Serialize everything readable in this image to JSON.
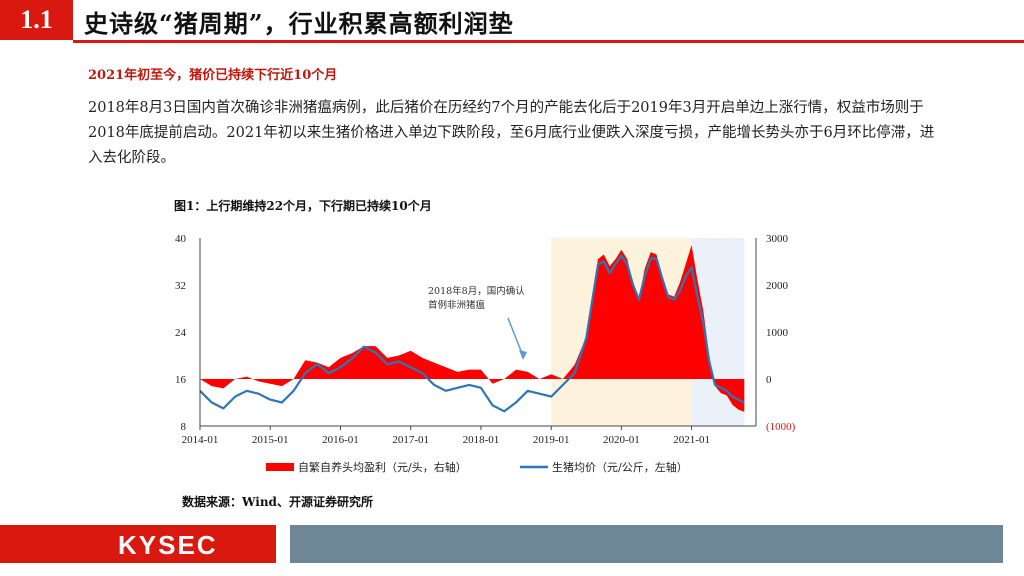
{
  "header": {
    "section_number": "1.1",
    "title": "史诗级“猪周期”，行业积累高额利润垫"
  },
  "subtitle": "2021年初至今，猪价已持续下行近10个月",
  "body_text": "2018年8月3日国内首次确诊非洲猪瘟病例，此后猪价在历经约7个月的产能去化后于2019年3月开启单边上涨行情，权益市场则于2018年底提前启动。2021年初以来生猪价格进入单边下跌阶段，至6月底行业便跌入深度亏损，产能增长势头亦于6月环比停滞，进入去化阶段。",
  "figure_title": "图1：上行期维持22个月，下行期已持续10个月",
  "source": "数据来源：Wind、开源证券研究所",
  "footer": {
    "logo": "KYSEC"
  },
  "colors": {
    "red": "#ff0000",
    "blue": "#2e75b6",
    "brand_red": "#d9190f",
    "footer_gray": "#6e8796",
    "shade_yellow": "#fdf3dd",
    "shade_blue": "#eaf1f9"
  },
  "chart_data": {
    "type": "line+area",
    "x_tick_labels": [
      "2014-01",
      "2015-01",
      "2016-01",
      "2017-01",
      "2018-01",
      "2019-01",
      "2020-01",
      "2021-01"
    ],
    "x_range": [
      "2014-01",
      "2021-12"
    ],
    "left_axis": {
      "ticks": [
        "40",
        "32",
        "24",
        "16",
        "8"
      ],
      "ylim": [
        8,
        40
      ]
    },
    "right_axis": {
      "ticks": [
        "3000",
        "2000",
        "1000",
        "0",
        "(1000)"
      ],
      "ylim": [
        -1000,
        3000
      ]
    },
    "shaded_periods": [
      {
        "from": "2019-01",
        "to": "2021-01",
        "color": "#fdf3dd"
      },
      {
        "from": "2021-01",
        "to": "2021-10",
        "color": "#eaf1f9"
      }
    ],
    "annotation": {
      "lines": [
        "2018年8月，国内确认",
        "首例非洲猪瘟"
      ],
      "points_to": "2018-08"
    },
    "legend": {
      "position": "bottom"
    },
    "series": [
      {
        "name": "自繁自养头均盈利（元/头，右轴）",
        "kind": "area",
        "axis": "right",
        "color": "#ff0000",
        "x": [
          "2014-01",
          "2014-03",
          "2014-05",
          "2014-07",
          "2014-09",
          "2014-11",
          "2015-01",
          "2015-03",
          "2015-05",
          "2015-07",
          "2015-09",
          "2015-11",
          "2016-01",
          "2016-03",
          "2016-05",
          "2016-07",
          "2016-09",
          "2016-11",
          "2017-01",
          "2017-03",
          "2017-05",
          "2017-07",
          "2017-09",
          "2017-11",
          "2018-01",
          "2018-03",
          "2018-05",
          "2018-07",
          "2018-09",
          "2018-11",
          "2019-01",
          "2019-03",
          "2019-05",
          "2019-07",
          "2019-09",
          "2019-10",
          "2019-11",
          "2019-12",
          "2020-01",
          "2020-02",
          "2020-03",
          "2020-04",
          "2020-05",
          "2020-06",
          "2020-07",
          "2020-08",
          "2020-09",
          "2020-10",
          "2020-11",
          "2020-12",
          "2021-01",
          "2021-02",
          "2021-03",
          "2021-04",
          "2021-05",
          "2021-06",
          "2021-07",
          "2021-08",
          "2021-09",
          "2021-10"
        ],
        "values": [
          0,
          -150,
          -200,
          0,
          50,
          -50,
          -100,
          -150,
          0,
          400,
          350,
          250,
          450,
          550,
          700,
          700,
          450,
          500,
          600,
          450,
          350,
          250,
          150,
          200,
          200,
          -100,
          0,
          200,
          150,
          0,
          100,
          0,
          300,
          900,
          2550,
          2650,
          2400,
          2550,
          2750,
          2550,
          2050,
          1700,
          2350,
          2700,
          2650,
          2200,
          1800,
          1750,
          2050,
          2450,
          2850,
          2100,
          1450,
          500,
          -150,
          -300,
          -350,
          -550,
          -650,
          -700
        ]
      },
      {
        "name": "生猪均价（元/公斤，左轴）",
        "kind": "line",
        "axis": "left",
        "color": "#2e75b6",
        "x": [
          "2014-01",
          "2014-03",
          "2014-05",
          "2014-07",
          "2014-09",
          "2014-11",
          "2015-01",
          "2015-03",
          "2015-05",
          "2015-07",
          "2015-09",
          "2015-11",
          "2016-01",
          "2016-03",
          "2016-05",
          "2016-07",
          "2016-09",
          "2016-11",
          "2017-01",
          "2017-03",
          "2017-05",
          "2017-07",
          "2017-09",
          "2017-11",
          "2018-01",
          "2018-03",
          "2018-05",
          "2018-07",
          "2018-09",
          "2018-11",
          "2019-01",
          "2019-03",
          "2019-05",
          "2019-07",
          "2019-09",
          "2019-10",
          "2019-11",
          "2019-12",
          "2020-01",
          "2020-02",
          "2020-03",
          "2020-04",
          "2020-05",
          "2020-06",
          "2020-07",
          "2020-08",
          "2020-09",
          "2020-10",
          "2020-11",
          "2020-12",
          "2021-01",
          "2021-02",
          "2021-03",
          "2021-04",
          "2021-05",
          "2021-06",
          "2021-07",
          "2021-08",
          "2021-09",
          "2021-10"
        ],
        "values": [
          14,
          12,
          11,
          13,
          14,
          13.5,
          12.5,
          12,
          14,
          17,
          18.5,
          17,
          18,
          19.5,
          21.5,
          20.5,
          18.5,
          19,
          18,
          17,
          15,
          14,
          14.5,
          15,
          14.5,
          11.5,
          10.5,
          12,
          14,
          13.5,
          13,
          15,
          17,
          23,
          35.5,
          36,
          34,
          35.5,
          37,
          35.5,
          32,
          29.5,
          33.5,
          36.5,
          36.5,
          33,
          30,
          29.5,
          31,
          33.5,
          35,
          30,
          25.5,
          19,
          15,
          14.5,
          14,
          13,
          12.5,
          12
        ]
      }
    ]
  }
}
